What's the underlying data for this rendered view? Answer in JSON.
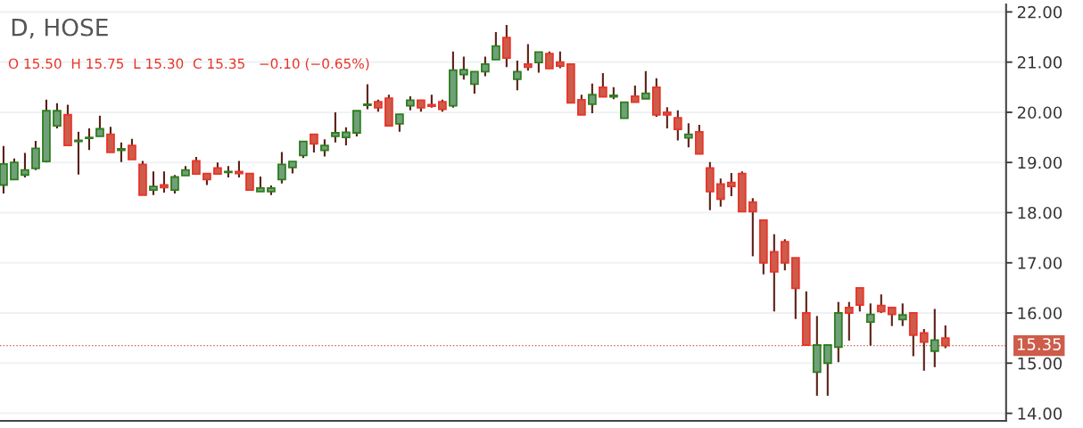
{
  "chart_data": {
    "type": "candlestick",
    "title": "D, HOSE",
    "subtitle": "O 15.50  H 15.75  L 15.30  C 15.35   −0.10 (−0.65%)",
    "categories": [
      null,
      null,
      null,
      null,
      null,
      null,
      null,
      null,
      null,
      null,
      null,
      null,
      null,
      null,
      null,
      null,
      null,
      null,
      null,
      null,
      null,
      null,
      null,
      null,
      null,
      null,
      null,
      null,
      null,
      null,
      null,
      null,
      null,
      null,
      null,
      null,
      null,
      null,
      null,
      null,
      null,
      null,
      null,
      null,
      null,
      null,
      null,
      null,
      null,
      null,
      null,
      null,
      null,
      null,
      null,
      null,
      null,
      null,
      null,
      null,
      null,
      null,
      null,
      null,
      null,
      null,
      null,
      null,
      null,
      null,
      null,
      null,
      null,
      null,
      null,
      null,
      null,
      null,
      null,
      null,
      null,
      null,
      null,
      null,
      null,
      null,
      null,
      null,
      null
    ],
    "ohlc": [
      [
        18.55,
        19.33,
        18.38,
        18.97
      ],
      [
        18.66,
        19.08,
        18.66,
        19.0
      ],
      [
        18.75,
        19.19,
        18.7,
        18.85
      ],
      [
        18.88,
        19.43,
        18.85,
        19.28
      ],
      [
        19.02,
        20.25,
        19.0,
        20.03
      ],
      [
        19.73,
        20.18,
        19.68,
        20.03
      ],
      [
        19.95,
        20.15,
        19.34,
        19.34
      ],
      [
        19.42,
        19.61,
        18.76,
        19.43
      ],
      [
        19.48,
        19.68,
        19.25,
        19.5
      ],
      [
        19.52,
        19.93,
        19.52,
        19.67
      ],
      [
        19.56,
        19.71,
        19.2,
        19.2
      ],
      [
        19.24,
        19.4,
        19.01,
        19.27
      ],
      [
        19.34,
        19.47,
        19.06,
        19.06
      ],
      [
        18.96,
        19.03,
        18.35,
        18.35
      ],
      [
        18.45,
        18.82,
        18.35,
        18.52
      ],
      [
        18.55,
        18.82,
        18.4,
        18.5
      ],
      [
        18.45,
        18.75,
        18.38,
        18.71
      ],
      [
        18.74,
        18.93,
        18.74,
        18.85
      ],
      [
        19.03,
        19.11,
        18.77,
        18.77
      ],
      [
        18.78,
        18.78,
        18.55,
        18.66
      ],
      [
        18.89,
        19.0,
        18.77,
        18.77
      ],
      [
        18.8,
        18.93,
        18.7,
        18.82
      ],
      [
        18.82,
        19.03,
        18.7,
        18.78
      ],
      [
        18.78,
        18.78,
        18.45,
        18.45
      ],
      [
        18.42,
        18.72,
        18.42,
        18.49
      ],
      [
        18.42,
        18.54,
        18.35,
        18.49
      ],
      [
        18.66,
        19.21,
        18.58,
        18.96
      ],
      [
        18.9,
        19.02,
        18.78,
        19.02
      ],
      [
        19.14,
        19.42,
        19.09,
        19.42
      ],
      [
        19.56,
        19.56,
        19.2,
        19.37
      ],
      [
        19.24,
        19.46,
        19.12,
        19.34
      ],
      [
        19.52,
        20.0,
        19.4,
        19.59
      ],
      [
        19.5,
        19.7,
        19.34,
        19.6
      ],
      [
        19.59,
        20.03,
        19.52,
        20.03
      ],
      [
        20.14,
        20.56,
        20.06,
        20.16
      ],
      [
        20.21,
        20.25,
        20.01,
        20.09
      ],
      [
        20.28,
        20.35,
        19.73,
        19.73
      ],
      [
        19.77,
        19.96,
        19.61,
        19.96
      ],
      [
        20.13,
        20.32,
        20.04,
        20.24
      ],
      [
        20.24,
        20.24,
        20.01,
        20.09
      ],
      [
        20.15,
        20.35,
        20.09,
        20.12
      ],
      [
        20.21,
        20.25,
        20.01,
        20.06
      ],
      [
        20.13,
        21.21,
        20.09,
        20.84
      ],
      [
        20.75,
        21.11,
        20.65,
        20.85
      ],
      [
        20.56,
        20.81,
        20.37,
        20.81
      ],
      [
        20.81,
        21.11,
        20.72,
        20.96
      ],
      [
        21.05,
        21.6,
        21.05,
        21.32
      ],
      [
        21.49,
        21.74,
        20.9,
        21.08
      ],
      [
        20.66,
        21.03,
        20.44,
        20.81
      ],
      [
        20.96,
        21.36,
        20.83,
        20.9
      ],
      [
        20.99,
        21.2,
        20.79,
        21.2
      ],
      [
        21.17,
        21.21,
        20.87,
        20.87
      ],
      [
        21.0,
        21.21,
        20.88,
        20.92
      ],
      [
        20.96,
        20.96,
        20.19,
        20.19
      ],
      [
        20.25,
        20.35,
        19.95,
        19.95
      ],
      [
        20.16,
        20.57,
        19.98,
        20.35
      ],
      [
        20.5,
        20.78,
        20.31,
        20.31
      ],
      [
        20.31,
        20.5,
        20.26,
        20.34
      ],
      [
        19.88,
        20.2,
        19.88,
        20.2
      ],
      [
        20.32,
        20.53,
        20.2,
        20.2
      ],
      [
        20.27,
        20.82,
        20.27,
        20.38
      ],
      [
        20.5,
        20.68,
        19.91,
        19.95
      ],
      [
        20.0,
        20.1,
        19.68,
        19.95
      ],
      [
        19.89,
        20.04,
        19.44,
        19.66
      ],
      [
        19.49,
        19.78,
        19.3,
        19.56
      ],
      [
        19.61,
        19.75,
        19.17,
        19.17
      ],
      [
        18.89,
        19.01,
        18.05,
        18.42
      ],
      [
        18.57,
        18.68,
        18.12,
        18.27
      ],
      [
        18.6,
        18.79,
        18.33,
        18.52
      ],
      [
        18.78,
        18.82,
        18.02,
        18.02
      ],
      [
        18.21,
        18.29,
        17.13,
        18.02
      ],
      [
        17.85,
        17.85,
        16.77,
        17.0
      ],
      [
        17.22,
        17.57,
        16.03,
        16.82
      ],
      [
        17.42,
        17.47,
        16.85,
        17.0
      ],
      [
        17.1,
        17.1,
        15.88,
        16.49
      ],
      [
        16.0,
        16.43,
        15.36,
        15.36
      ],
      [
        14.82,
        15.94,
        14.35,
        15.36
      ],
      [
        15.0,
        15.36,
        14.35,
        15.36
      ],
      [
        15.32,
        16.22,
        15.02,
        16.0
      ],
      [
        16.11,
        16.22,
        15.45,
        16.0
      ],
      [
        16.5,
        16.5,
        16.03,
        16.16
      ],
      [
        15.82,
        16.19,
        15.35,
        15.97
      ],
      [
        16.15,
        16.37,
        16.0,
        16.03
      ],
      [
        16.11,
        16.11,
        15.74,
        15.97
      ],
      [
        15.87,
        16.19,
        15.74,
        15.96
      ],
      [
        16.0,
        16.0,
        15.14,
        15.56
      ],
      [
        15.6,
        15.68,
        14.85,
        15.42
      ],
      [
        15.24,
        16.08,
        14.92,
        15.46
      ],
      [
        15.5,
        15.75,
        15.3,
        15.35
      ]
    ],
    "ylim": [
      13.85,
      22.15
    ],
    "yticks": [
      {
        "value": 14,
        "label": "14.00"
      },
      {
        "value": 15,
        "label": "15.00"
      },
      {
        "value": 16,
        "label": "16.00"
      },
      {
        "value": 17,
        "label": "17.00"
      },
      {
        "value": 18,
        "label": "18.00"
      },
      {
        "value": 19,
        "label": "19.00"
      },
      {
        "value": 20,
        "label": "20.00"
      },
      {
        "value": 21,
        "label": "21.00"
      },
      {
        "value": 22,
        "label": "22.00"
      }
    ],
    "grid": "y",
    "tick_labels": "y",
    "ref_lines": [
      {
        "axis": "y",
        "value": 15.35,
        "label": "15.35",
        "color": "#cd5c4a",
        "line_style": "dotted"
      }
    ]
  }
}
